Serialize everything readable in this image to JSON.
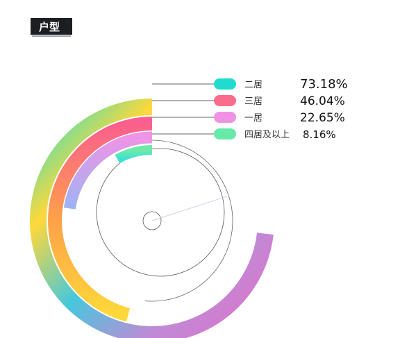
{
  "header": {
    "title": "户型"
  },
  "chart_data": {
    "type": "radial-bar",
    "title": "户型",
    "series": [
      {
        "name": "二居",
        "value": 73.18,
        "label": "73.18%",
        "color": "#1fdccf",
        "gradient": [
          "#20e0d0",
          "#ffd83a",
          "#46c8dc",
          "#c08ad6",
          "#e070c8"
        ]
      },
      {
        "name": "三居",
        "value": 46.04,
        "label": "46.04%",
        "color": "#fb6c8c",
        "gradient": [
          "#fb5f8e",
          "#ffa049",
          "#ffd83a"
        ]
      },
      {
        "name": "一居",
        "value": 22.65,
        "label": "22.65%",
        "color": "#ef92e2",
        "gradient": [
          "#ef94e6",
          "#9cb4f4"
        ]
      },
      {
        "name": "四居及以上",
        "value": 8.16,
        "label": "8.16%",
        "color": "#67e9a7",
        "gradient": [
          "#6eeaa8",
          "#3ee0d2"
        ]
      }
    ],
    "max": 100
  }
}
